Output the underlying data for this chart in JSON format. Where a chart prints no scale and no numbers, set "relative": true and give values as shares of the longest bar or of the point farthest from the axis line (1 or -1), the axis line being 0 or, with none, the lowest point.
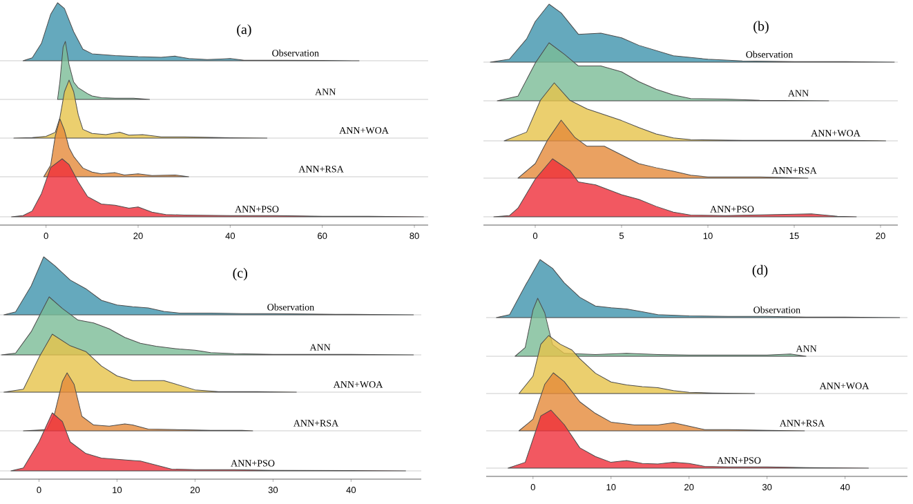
{
  "chart_data": [
    {
      "type": "area",
      "relative": true,
      "title": "(a)",
      "xlim": [
        -10,
        83
      ],
      "tick_labels": false,
      "x": [
        -5,
        -3,
        -1,
        1,
        2.5,
        4,
        6,
        8,
        10,
        15,
        20,
        25,
        28,
        31,
        35,
        38,
        40,
        43,
        50,
        60,
        68
      ],
      "series": [
        {
          "name": "Observation",
          "color": "#3f93ad",
          "values": [
            0,
            0.05,
            0.3,
            0.8,
            1,
            0.9,
            0.5,
            0.2,
            0.12,
            0.09,
            0.07,
            0.06,
            0.08,
            0.04,
            0.02,
            0.03,
            0.04,
            0.01,
            0.01,
            0.005,
            0
          ]
        }
      ]
    },
    {
      "type": "area",
      "relative": true,
      "xlim": [
        -10,
        83
      ],
      "tick_labels": false,
      "x": [
        2.5,
        3,
        3.7,
        4.2,
        5,
        6,
        7,
        8,
        9,
        10,
        12,
        15,
        19,
        22.5
      ],
      "series": [
        {
          "name": "ANN",
          "color": "#7bbc96",
          "values": [
            0,
            0.3,
            0.9,
            1,
            0.6,
            0.3,
            0.2,
            0.15,
            0.1,
            0.06,
            0.03,
            0.02,
            0.02,
            0
          ]
        }
      ]
    },
    {
      "type": "area",
      "relative": true,
      "xlim": [
        -10,
        83
      ],
      "tick_labels": false,
      "x": [
        -7,
        -3,
        0,
        2,
        3,
        4,
        5,
        6,
        7,
        8,
        10,
        13,
        16,
        18,
        21,
        25,
        30,
        40,
        48
      ],
      "series": [
        {
          "name": "ANN+WOA",
          "color": "#e6c34a",
          "values": [
            0,
            0.01,
            0.03,
            0.1,
            0.35,
            0.8,
            1,
            0.8,
            0.4,
            0.15,
            0.08,
            0.06,
            0.1,
            0.05,
            0.06,
            0.02,
            0.02,
            0.005,
            0
          ]
        }
      ]
    },
    {
      "type": "area",
      "relative": true,
      "xlim": [
        -10,
        83
      ],
      "tick_labels": false,
      "x": [
        -0.5,
        1,
        2,
        3,
        4,
        5,
        6,
        7,
        8,
        10,
        12,
        15,
        17,
        20,
        23,
        28,
        31
      ],
      "series": [
        {
          "name": "ANN+RSA",
          "color": "#e5893a",
          "values": [
            0,
            0.2,
            0.7,
            1,
            0.8,
            0.5,
            0.35,
            0.25,
            0.15,
            0.08,
            0.05,
            0.07,
            0.03,
            0.05,
            0.02,
            0.03,
            0
          ]
        }
      ]
    },
    {
      "type": "area",
      "relative": true,
      "xlim": [
        -10,
        83
      ],
      "xticks": [
        0,
        20,
        40,
        60,
        80
      ],
      "tick_labels": "x",
      "x": [
        -7.5,
        -5,
        -3,
        -1,
        1,
        3.5,
        5,
        7,
        9,
        12,
        15,
        18,
        20,
        23,
        26,
        30,
        40,
        50,
        60,
        70,
        82
      ],
      "series": [
        {
          "name": "ANN+PSO",
          "color": "#ef2e3a",
          "values": [
            0,
            0.02,
            0.1,
            0.4,
            0.85,
            1,
            0.9,
            0.6,
            0.35,
            0.22,
            0.2,
            0.15,
            0.17,
            0.08,
            0.04,
            0.03,
            0.02,
            0.02,
            0.01,
            0.01,
            0
          ]
        }
      ]
    },
    {
      "type": "area",
      "relative": true,
      "title": "(b)",
      "xlim": [
        -3,
        21
      ],
      "tick_labels": false,
      "x": [
        -2.6,
        -1.5,
        -0.5,
        0,
        0.8,
        1.5,
        2.5,
        3.8,
        5,
        6,
        8,
        10,
        12,
        15,
        18,
        20.8
      ],
      "series": [
        {
          "name": "Observation",
          "color": "#3f93ad",
          "values": [
            0,
            0.05,
            0.4,
            0.7,
            1,
            0.85,
            0.48,
            0.5,
            0.42,
            0.29,
            0.11,
            0.05,
            0.02,
            0.01,
            0.01,
            0
          ]
        }
      ]
    },
    {
      "type": "area",
      "relative": true,
      "xlim": [
        -3,
        21
      ],
      "tick_labels": false,
      "x": [
        -2.2,
        -1,
        0,
        0.8,
        1.7,
        2.5,
        3.8,
        5,
        6,
        7,
        8,
        9,
        11,
        13,
        17
      ],
      "series": [
        {
          "name": "ANN",
          "color": "#7bbc96",
          "values": [
            0,
            0.08,
            0.65,
            1,
            0.8,
            0.6,
            0.6,
            0.5,
            0.33,
            0.2,
            0.1,
            0.04,
            0.03,
            0.01,
            0
          ]
        }
      ]
    },
    {
      "type": "area",
      "relative": true,
      "xlim": [
        -3,
        21
      ],
      "tick_labels": false,
      "x": [
        -1.8,
        -0.5,
        0.3,
        1.1,
        2,
        3,
        4,
        5,
        6,
        7,
        8,
        9,
        12,
        18,
        20.3
      ],
      "series": [
        {
          "name": "ANN+WOA",
          "color": "#e6c34a",
          "values": [
            0,
            0.15,
            0.7,
            1,
            0.7,
            0.55,
            0.45,
            0.35,
            0.23,
            0.12,
            0.05,
            0.02,
            0.01,
            0.01,
            0
          ]
        }
      ]
    },
    {
      "type": "area",
      "relative": true,
      "xlim": [
        -3,
        21
      ],
      "tick_labels": false,
      "x": [
        -1,
        0,
        0.7,
        1.5,
        2.3,
        3,
        4,
        5,
        6,
        7,
        8,
        9,
        10,
        13,
        15.8
      ],
      "series": [
        {
          "name": "ANN+RSA",
          "color": "#e5893a",
          "values": [
            0,
            0.25,
            0.65,
            1,
            0.7,
            0.55,
            0.55,
            0.4,
            0.25,
            0.18,
            0.12,
            0.05,
            0.02,
            0.02,
            0
          ]
        }
      ]
    },
    {
      "type": "area",
      "relative": true,
      "xlim": [
        -3,
        21
      ],
      "xticks": [
        0,
        5,
        10,
        15,
        20
      ],
      "tick_labels": "x",
      "x": [
        -2.4,
        -1.5,
        -1,
        0,
        1,
        2,
        2.5,
        3.5,
        5,
        6,
        7,
        8,
        9,
        11,
        14,
        16,
        17.5,
        18.6
      ],
      "series": [
        {
          "name": "ANN+PSO",
          "color": "#ef2e3a",
          "values": [
            0,
            0.02,
            0.15,
            0.65,
            1,
            0.8,
            0.6,
            0.55,
            0.38,
            0.3,
            0.18,
            0.08,
            0.03,
            0.02,
            0.04,
            0.05,
            0.01,
            0
          ]
        }
      ]
    },
    {
      "type": "area",
      "relative": true,
      "title": "(c)",
      "xlim": [
        -5,
        49
      ],
      "tick_labels": false,
      "x": [
        -4.5,
        -3,
        -1,
        0.6,
        2,
        4,
        6,
        8,
        10,
        12,
        14,
        16,
        18,
        22,
        26,
        30,
        38,
        48
      ],
      "series": [
        {
          "name": "Observation",
          "color": "#3f93ad",
          "values": [
            0,
            0.05,
            0.5,
            1,
            0.85,
            0.6,
            0.45,
            0.25,
            0.17,
            0.14,
            0.12,
            0.06,
            0.03,
            0.03,
            0.02,
            0.02,
            0.01,
            0
          ]
        }
      ]
    },
    {
      "type": "area",
      "relative": true,
      "xlim": [
        -5,
        49
      ],
      "tick_labels": false,
      "x": [
        -4.8,
        -3,
        -1,
        1.3,
        3,
        5,
        7,
        9,
        11,
        13,
        15,
        18,
        20,
        22,
        25,
        30,
        40,
        48
      ],
      "series": [
        {
          "name": "ANN",
          "color": "#7bbc96",
          "values": [
            0,
            0.03,
            0.4,
            1,
            0.8,
            0.6,
            0.55,
            0.45,
            0.3,
            0.2,
            0.15,
            0.1,
            0.08,
            0.04,
            0.02,
            0.01,
            0.01,
            0
          ]
        }
      ]
    },
    {
      "type": "area",
      "relative": true,
      "xlim": [
        -5,
        49
      ],
      "tick_labels": false,
      "x": [
        -4.5,
        -2,
        0,
        1.7,
        4,
        6,
        8,
        10,
        12,
        14,
        16,
        18,
        20,
        23,
        28,
        33
      ],
      "series": [
        {
          "name": "ANN+WOA",
          "color": "#e6c34a",
          "values": [
            0,
            0.05,
            0.6,
            1,
            0.8,
            0.7,
            0.45,
            0.28,
            0.2,
            0.2,
            0.2,
            0.12,
            0.04,
            0.01,
            0.01,
            0
          ]
        }
      ]
    },
    {
      "type": "area",
      "relative": true,
      "xlim": [
        -5,
        49
      ],
      "tick_labels": false,
      "x": [
        -2,
        1,
        2,
        3,
        3.6,
        4.5,
        5.5,
        7,
        9,
        11,
        12,
        14,
        18,
        22,
        26,
        27.4
      ],
      "series": [
        {
          "name": "ANN+RSA",
          "color": "#e5893a",
          "values": [
            0,
            0.02,
            0.3,
            0.85,
            1,
            0.8,
            0.25,
            0.1,
            0.08,
            0.12,
            0.1,
            0.03,
            0.02,
            0.01,
            0.01,
            0
          ]
        }
      ]
    },
    {
      "type": "area",
      "relative": true,
      "xlim": [
        -5,
        49
      ],
      "xticks": [
        0,
        10,
        20,
        30,
        40
      ],
      "tick_labels": "x",
      "x": [
        -3.6,
        -2,
        0,
        1.7,
        3,
        4,
        6,
        8,
        10,
        12,
        13,
        15,
        17,
        20,
        25,
        30,
        40,
        47
      ],
      "series": [
        {
          "name": "ANN+PSO",
          "color": "#ef2e3a",
          "values": [
            0,
            0.05,
            0.5,
            1,
            0.85,
            0.5,
            0.3,
            0.22,
            0.2,
            0.18,
            0.17,
            0.1,
            0.03,
            0.02,
            0.02,
            0.01,
            0.005,
            0
          ]
        }
      ]
    },
    {
      "type": "area",
      "relative": true,
      "title": "(d)",
      "xlim": [
        -6,
        48
      ],
      "tick_labels": false,
      "x": [
        -4.7,
        -3,
        -1,
        0.9,
        2.5,
        4,
        6,
        8,
        10,
        12,
        14,
        16,
        20,
        25,
        30,
        35,
        40,
        47
      ],
      "series": [
        {
          "name": "Observation",
          "color": "#3f93ad",
          "values": [
            0,
            0.05,
            0.55,
            1,
            0.85,
            0.6,
            0.35,
            0.2,
            0.17,
            0.15,
            0.1,
            0.05,
            0.03,
            0.02,
            0.02,
            0.01,
            0.01,
            0
          ]
        }
      ]
    },
    {
      "type": "area",
      "relative": true,
      "xlim": [
        -6,
        48
      ],
      "tick_labels": false,
      "x": [
        -2.3,
        -1,
        0,
        0.6,
        1.5,
        2.5,
        4,
        8,
        12,
        16,
        20,
        25,
        30,
        33,
        35
      ],
      "series": [
        {
          "name": "ANN",
          "color": "#7bbc96",
          "values": [
            0,
            0.15,
            0.8,
            1,
            0.75,
            0.2,
            0.05,
            0.03,
            0.05,
            0.03,
            0.02,
            0.02,
            0.02,
            0.04,
            0
          ]
        }
      ]
    },
    {
      "type": "area",
      "relative": true,
      "xlim": [
        -6,
        48
      ],
      "tick_labels": false,
      "x": [
        -1.8,
        0,
        1,
        2,
        3.5,
        5,
        6,
        8,
        10,
        12,
        14,
        16,
        18,
        20,
        23,
        28.4
      ],
      "series": [
        {
          "name": "ANN+WOA",
          "color": "#e6c34a",
          "values": [
            0,
            0.3,
            0.85,
            1,
            0.85,
            0.75,
            0.6,
            0.35,
            0.2,
            0.15,
            0.12,
            0.1,
            0.05,
            0.02,
            0.01,
            0
          ]
        }
      ]
    },
    {
      "type": "area",
      "relative": true,
      "xlim": [
        -6,
        48
      ],
      "tick_labels": false,
      "x": [
        -1.8,
        0,
        1.5,
        2.6,
        4,
        6,
        8,
        10,
        13,
        16,
        18,
        20,
        22,
        25,
        30,
        34.8
      ],
      "series": [
        {
          "name": "ANN+RSA",
          "color": "#e5893a",
          "values": [
            0,
            0.2,
            0.8,
            1,
            0.85,
            0.5,
            0.3,
            0.15,
            0.1,
            0.1,
            0.14,
            0.08,
            0.02,
            0.02,
            0.01,
            0
          ]
        }
      ]
    },
    {
      "type": "area",
      "relative": true,
      "xlim": [
        -6,
        48
      ],
      "xticks": [
        0,
        10,
        20,
        30,
        40
      ],
      "tick_labels": "x",
      "x": [
        -3.2,
        -1,
        0,
        1,
        2.3,
        4,
        6,
        8,
        10,
        12,
        14,
        16,
        18,
        20,
        22,
        25,
        30,
        35,
        43
      ],
      "series": [
        {
          "name": "ANN+PSO",
          "color": "#ef2e3a",
          "values": [
            0,
            0.1,
            0.5,
            0.9,
            1,
            0.75,
            0.35,
            0.2,
            0.1,
            0.13,
            0.08,
            0.07,
            0.1,
            0.08,
            0.03,
            0.02,
            0.02,
            0.01,
            0
          ]
        }
      ]
    }
  ]
}
